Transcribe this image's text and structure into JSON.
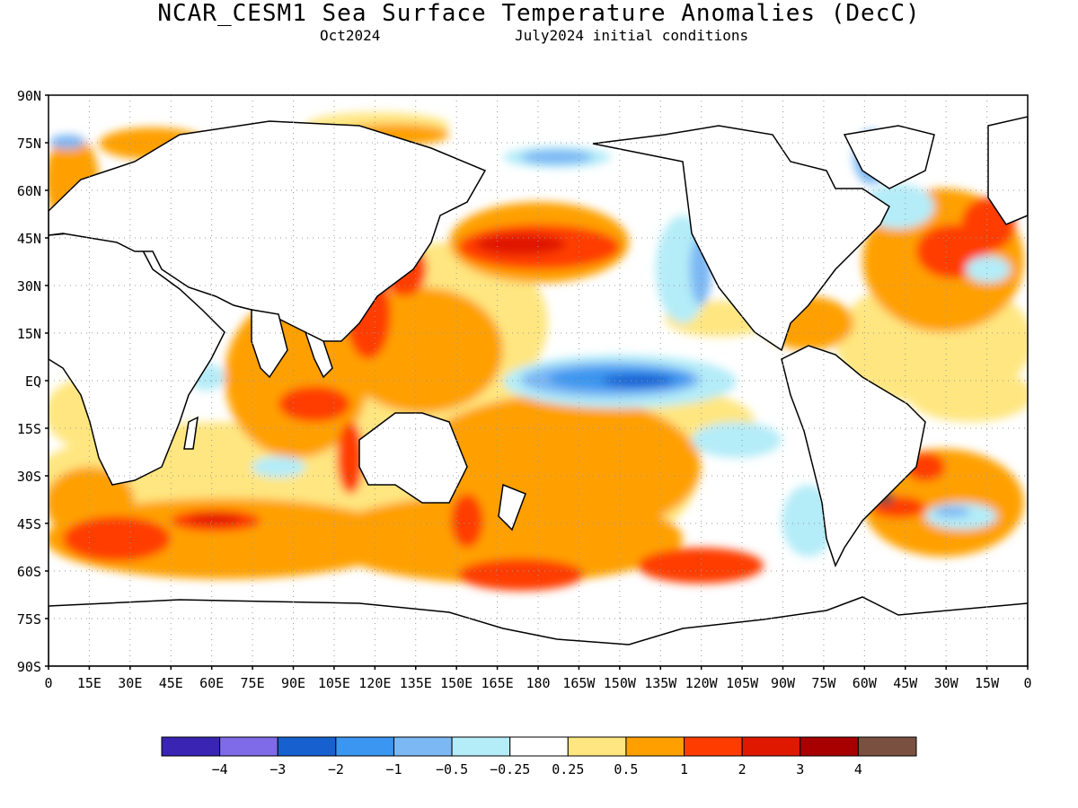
{
  "title": "NCAR_CESM1 Sea Surface Temperature Anomalies (DecC)",
  "valid_label": "Oct2024",
  "init_label": "July2024 initial conditions",
  "lat_labels": [
    "90N",
    "75N",
    "60N",
    "45N",
    "30N",
    "15N",
    "EQ",
    "15S",
    "30S",
    "45S",
    "60S",
    "75S",
    "90S"
  ],
  "lon_labels": [
    "0",
    "15E",
    "30E",
    "45E",
    "60E",
    "75E",
    "90E",
    "105E",
    "120E",
    "135E",
    "150E",
    "165E",
    "180",
    "165W",
    "150W",
    "135W",
    "120W",
    "105W",
    "90W",
    "75W",
    "60W",
    "45W",
    "30W",
    "15W",
    "0"
  ],
  "colorbar": {
    "colors": [
      "#3a24b4",
      "#7f6ae8",
      "#1660d0",
      "#3a96f0",
      "#7cb8f4",
      "#b4ecf8",
      "#ffffff",
      "#ffe680",
      "#ffa000",
      "#ff3c00",
      "#e01800",
      "#a80000",
      "#7a5040"
    ],
    "labels": [
      "−4",
      "−3",
      "−2",
      "−1",
      "−0.5",
      "−0.25",
      "0.25",
      "0.5",
      "1",
      "2",
      "3",
      "4"
    ]
  },
  "map_data": {
    "lat_range": [
      -90,
      90
    ],
    "lon_range": [
      0,
      360
    ],
    "fields": [
      {
        "lon": 0,
        "lat": 0,
        "color": "#ffe680"
      }
    ]
  }
}
